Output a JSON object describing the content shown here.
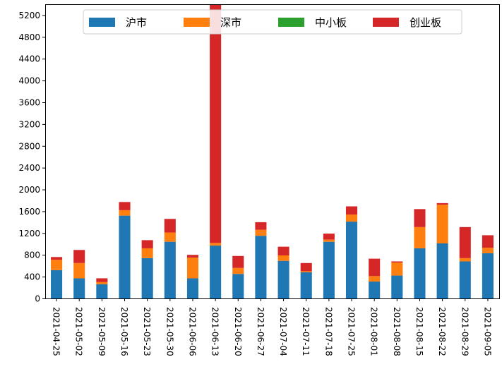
{
  "chart_data": {
    "type": "bar",
    "stacked": true,
    "title": "",
    "xlabel": "",
    "ylabel": "",
    "ylim": [
      0,
      5400
    ],
    "yticks": [
      0,
      400,
      800,
      1200,
      1600,
      2000,
      2400,
      2800,
      3200,
      3600,
      4000,
      4400,
      4800,
      5200
    ],
    "grid": false,
    "legend_position": "top-center",
    "categories": [
      "2021-04-25",
      "2021-05-02",
      "2021-05-09",
      "2021-05-16",
      "2021-05-23",
      "2021-05-30",
      "2021-06-06",
      "2021-06-13",
      "2021-06-20",
      "2021-06-27",
      "2021-07-04",
      "2021-07-11",
      "2021-07-18",
      "2021-07-25",
      "2021-08-01",
      "2021-08-08",
      "2021-08-15",
      "2021-08-22",
      "2021-08-29",
      "2021-09-05"
    ],
    "series": [
      {
        "name": "沪市",
        "color": "#1f77b4",
        "values": [
          520,
          370,
          260,
          1520,
          740,
          1040,
          370,
          970,
          450,
          1150,
          690,
          480,
          1040,
          1410,
          310,
          420,
          920,
          1010,
          680,
          830
        ]
      },
      {
        "name": "深市",
        "color": "#ff7f0e",
        "values": [
          190,
          280,
          40,
          100,
          180,
          170,
          380,
          50,
          110,
          110,
          100,
          20,
          40,
          130,
          100,
          240,
          390,
          710,
          60,
          100
        ]
      },
      {
        "name": "中小板",
        "color": "#2ca02c",
        "values": [
          0,
          0,
          0,
          0,
          0,
          0,
          0,
          0,
          0,
          0,
          0,
          0,
          0,
          0,
          0,
          0,
          0,
          0,
          0,
          0
        ]
      },
      {
        "name": "创业板",
        "color": "#d62728",
        "values": [
          50,
          240,
          70,
          150,
          150,
          250,
          50,
          4370,
          220,
          140,
          160,
          150,
          110,
          150,
          320,
          20,
          330,
          30,
          570,
          230
        ]
      }
    ]
  }
}
